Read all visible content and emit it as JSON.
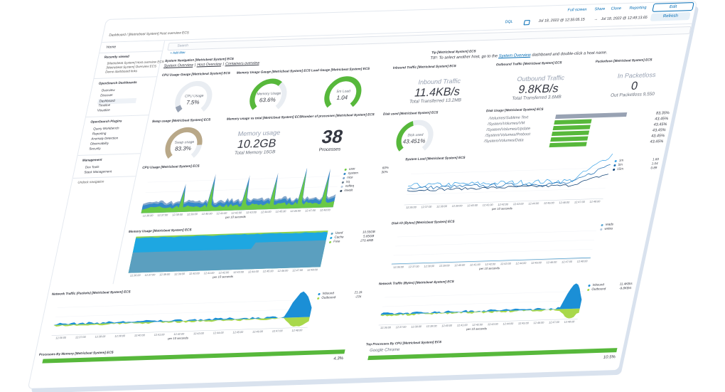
{
  "header": {
    "links": [
      "Full screen",
      "Share",
      "Clone",
      "Reporting"
    ],
    "edit": "Edit",
    "refresh": "Refresh",
    "breadcrumb": "Dashboard / [Metricbeat System] Host overview ECS",
    "query_language": "DQL",
    "time_from": "Jul 18, 2022 @ 12:35:05.15",
    "time_arrow": "→",
    "time_to": "Jul 18, 2022 @ 12:49:13.65",
    "search": "Search",
    "add_filter": "+ Add filter"
  },
  "sidebar": {
    "home": "Home",
    "recent_title": "Recently viewed",
    "recent": [
      "[Metricbeat System] Host overview ECS",
      "[Metricbeat System] Overview ECS",
      "Demo dashboard links"
    ],
    "dashboards_title": "OpenSearch Dashboards",
    "dashboards": [
      "Overview",
      "Discover",
      "Dashboard",
      "Timeline",
      "Visualize"
    ],
    "plugins_title": "OpenSearch Plugins",
    "plugins": [
      "Query Workbench",
      "Reporting",
      "Anomaly Detection",
      "Observability",
      "Security"
    ],
    "management_title": "Management",
    "management": [
      "Dev Tools",
      "Stack Management"
    ],
    "undock": "Undock navigation"
  },
  "navigation": {
    "title": "System Navigation [Metricbeat System] ECS",
    "links": [
      "System Overview",
      "Host Overview",
      "Containers overview"
    ],
    "separator": "|"
  },
  "tip": {
    "title": "Tip [Metricbeat System] ECS",
    "text_before": "TIP: To select another host, go to the ",
    "link": "System Overview",
    "text_after": " dashboard and double-click a host name."
  },
  "gauges": [
    {
      "title": "CPU Usage Gauge [Metricbeat System] ECS",
      "label": "CPU Usage",
      "value": 7.5,
      "value_label": "7.5%",
      "color": "#98a2b3"
    },
    {
      "title": "Memory Usage Gauge [Metricbeat System] ECS",
      "label": "Memory Usage",
      "value": 63.6,
      "value_label": "63.6%",
      "color": "#57b83b"
    },
    {
      "title": "Load Gauge [Metricbeat System] ECS",
      "label": "5m Load",
      "value": 1.04,
      "value_label": "1.04",
      "color": "#57b83b"
    },
    {
      "title": "Swap usage [Metricbeat System] ECS",
      "label": "Swap usage",
      "value": 83.3,
      "value_label": "83.3%",
      "color": "#b9a888"
    },
    {
      "title": "Disk used [Metricbeat System] ECS",
      "label": "Disk used",
      "value": 43.451,
      "value_label": "43.451%",
      "color": "#57b83b"
    }
  ],
  "metrics": [
    {
      "title": "Inbound Traffic [Metricbeat System] ECS",
      "label": "Inbound Traffic",
      "value": "11.4KB/s",
      "sub": "Total Transferred 13.2MB"
    },
    {
      "title": "Outbound Traffic [Metricbeat System] ECS",
      "label": "Outbound Traffic",
      "value": "9.8KB/s",
      "sub": "Total Transferred 3.6MB"
    },
    {
      "title": "Packetloss [Metricbeat System] ECS",
      "label": "In Packetloss",
      "value": "0",
      "sub": "Out Packetloss 9,550"
    },
    {
      "title": "Memory usage vs total [Metricbeat System] ECS",
      "label": "Memory usage",
      "value": "10.2GB",
      "sub": "Total Memory 16GB"
    },
    {
      "title": "Number of processes [Metricbeat System] ECS",
      "value": "38",
      "sub": "Processes"
    }
  ],
  "disk_usage": {
    "title": "Disk Usage [Metricbeat System] ECS",
    "rows": [
      {
        "path": "/Volumes/Sublime Text",
        "value": 83.35,
        "value_label": "83.35%",
        "color": "#98a2b3"
      },
      {
        "path": "/System/Volumes/VM",
        "value": 43.45,
        "value_label": "43.45%",
        "color": "#57b83b"
      },
      {
        "path": "/System/Volumes/Update",
        "value": 43.45,
        "value_label": "43.45%",
        "color": "#57b83b"
      },
      {
        "path": "/System/Volumes/Preboot",
        "value": 43.45,
        "value_label": "43.45%",
        "color": "#57b83b"
      },
      {
        "path": "/System/Volumes/Data",
        "value": 43.45,
        "value_label": "43.45%",
        "color": "#57b83b"
      },
      {
        "path": null,
        "value": 43.45,
        "value_label": "43.45%",
        "color": "#57b83b"
      }
    ]
  },
  "time_axis": {
    "ticks": [
      "12:36:00",
      "12:37:00",
      "12:38:00",
      "12:39:00",
      "12:40:00",
      "12:41:00",
      "12:42:00",
      "12:43:00",
      "12:44:00",
      "12:45:00",
      "12:46:00",
      "12:47:00",
      "12:48:00"
    ],
    "label": "per 10 seconds"
  },
  "charts": [
    {
      "title": "CPU Usage [Metricbeat System] ECS",
      "style": "cpu",
      "legend": [
        {
          "name": "user",
          "value": "60%",
          "color": "#6dcc3f"
        },
        {
          "name": "system",
          "value": "30%",
          "color": "#2f86c8"
        },
        {
          "name": "nice",
          "color": "#7fa3c9"
        },
        {
          "name": "irq",
          "color": "#6a7d8f"
        },
        {
          "name": "softirq",
          "color": "#b7c9dd"
        },
        {
          "name": "iowait",
          "color": "#34495e"
        }
      ]
    },
    {
      "title": "System Load [Metricbeat System] ECS",
      "style": "load",
      "legend": [
        {
          "name": "1m",
          "value": "1.83",
          "color": "#41a6e8"
        },
        {
          "name": "5m",
          "value": "1.04",
          "color": "#1f6fb4"
        },
        {
          "name": "15m",
          "value": "0.89",
          "color": "#0d3f73"
        }
      ]
    },
    {
      "title": "Memory Usage [Metricbeat System] ECS",
      "style": "memory",
      "legend": [
        {
          "name": "Used",
          "value": "10.55GB",
          "color": "#5b9fbf"
        },
        {
          "name": "Cache",
          "value": "5.85GB",
          "color": "#1ea7e1"
        },
        {
          "name": "Free",
          "value": "270.4MB",
          "color": "#8fd14f"
        }
      ]
    },
    {
      "title": "Disk IO (Bytes) [Metricbeat System] ECS",
      "style": "diskio",
      "legend": [
        {
          "name": "reads",
          "color": "#5fa8d3"
        },
        {
          "name": "writes",
          "color": "#b4c7dc"
        }
      ]
    },
    {
      "title": "Network Traffic (Packets) [Metricbeat System] ECS",
      "style": "network",
      "legend": [
        {
          "name": "Inbound",
          "value": "21.2k",
          "color": "#1b8fd6"
        },
        {
          "name": "Outbound",
          "value": "-21k",
          "color": "#a8d84a"
        }
      ]
    },
    {
      "title": "Network Traffic (Bytes) [Metricbeat System] ECS",
      "style": "network",
      "legend": [
        {
          "name": "Inbound",
          "value": "11.4KB/s",
          "color": "#1b8fd6"
        },
        {
          "name": "Outbound",
          "value": "-9.8KB/s",
          "color": "#a8d84a"
        }
      ]
    }
  ],
  "processes_memory": {
    "title": "Processes By Memory [Metricbeat System] ECS",
    "value_label": "4.3%"
  },
  "processes_cpu": {
    "title": "Top Processes By CPU [Metricbeat System] ECS",
    "name": "Google Chrome",
    "value_label": "10.5%"
  }
}
